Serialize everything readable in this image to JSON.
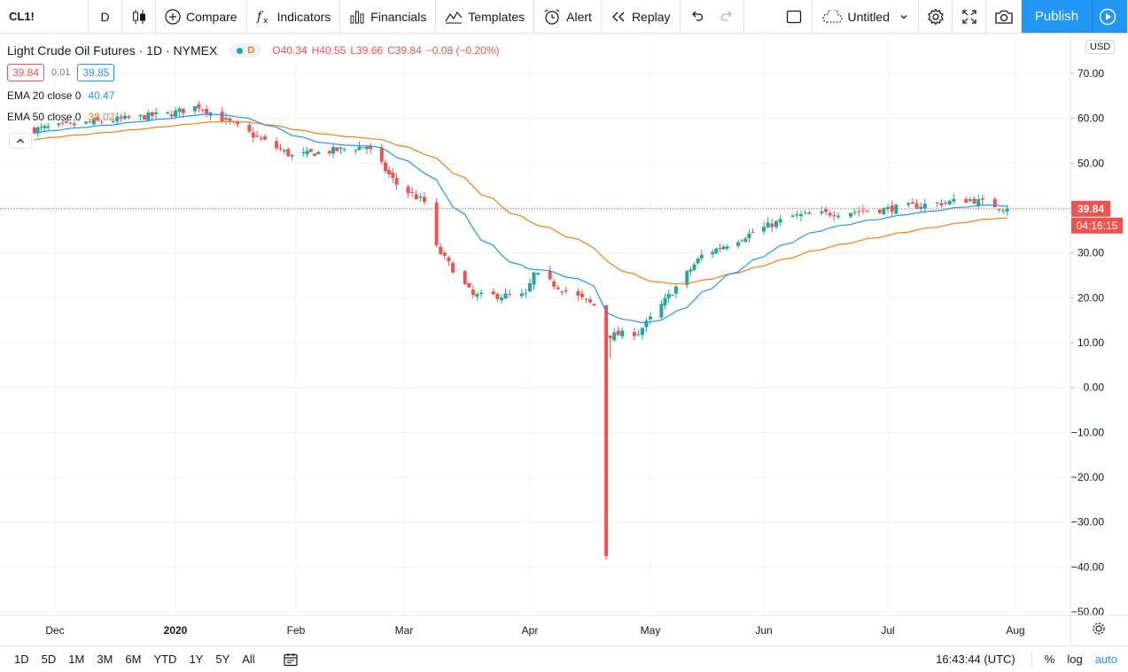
{
  "toolbar": {
    "symbol": "CL1!",
    "interval": "D",
    "compare": "Compare",
    "indicators": "Indicators",
    "financials": "Financials",
    "templates": "Templates",
    "alert": "Alert",
    "replay": "Replay",
    "layout_name": "Untitled",
    "publish": "Publish"
  },
  "legend": {
    "title": "Light Crude Oil Futures · 1D · NYMEX",
    "badge": "D",
    "open": "O40.34",
    "high": "H40.55",
    "low": "L39.66",
    "close": "C39.84",
    "change": "−0.08 (−0.20%)",
    "sell_price": "39.84",
    "spread": "0.01",
    "buy_price": "39.85",
    "ema20_label": "EMA 20 close 0",
    "ema20_value": "40.47",
    "ema50_label": "EMA 50 close 0",
    "ema50_value": "38.02"
  },
  "axis": {
    "currency": "USD",
    "price_ticks": [
      "70.00",
      "60.00",
      "50.00",
      "40.00",
      "30.00",
      "20.00",
      "10.00",
      "0.00",
      "−10.00",
      "−20.00",
      "−30.00",
      "−40.00",
      "−50.00"
    ],
    "time_ticks": [
      "Dec",
      "2020",
      "Feb",
      "Mar",
      "Apr",
      "May",
      "Jun",
      "Jul",
      "Aug"
    ],
    "last_price": "39.84",
    "countdown": "04:16:15"
  },
  "colors": {
    "up": "#26a69a",
    "down": "#ef5350",
    "ema20": "#2196f3",
    "ema50": "#f57f17",
    "accent": "#2196f3"
  },
  "bottombar": {
    "ranges": [
      "1D",
      "5D",
      "1M",
      "3M",
      "6M",
      "YTD",
      "1Y",
      "5Y",
      "All"
    ],
    "time": "16:43:44 (UTC)",
    "percent": "%",
    "log": "log",
    "auto": "auto"
  },
  "chart_data": {
    "type": "candlestick",
    "symbol": "CL1!",
    "ylim": [
      -50,
      70
    ],
    "price_scale_ticks": [
      70,
      60,
      50,
      40,
      30,
      20,
      10,
      0,
      -10,
      -20,
      -30,
      -40,
      -50
    ],
    "grid": true,
    "last_price": 39.84,
    "key_points": [
      {
        "date": "2019-11-25",
        "close": 57.5
      },
      {
        "date": "2019-12-31",
        "close": 61.1
      },
      {
        "date": "2020-01-07",
        "close": 62.7
      },
      {
        "date": "2020-01-31",
        "close": 51.6
      },
      {
        "date": "2020-02-20",
        "close": 53.8
      },
      {
        "date": "2020-02-28",
        "close": 45.3
      },
      {
        "date": "2020-03-06",
        "close": 41.3
      },
      {
        "date": "2020-03-09",
        "close": 31.1
      },
      {
        "date": "2020-03-18",
        "close": 20.4
      },
      {
        "date": "2020-03-31",
        "close": 20.5
      },
      {
        "date": "2020-04-02",
        "close": 25.3
      },
      {
        "date": "2020-04-17",
        "close": 18.3
      },
      {
        "date": "2020-04-20",
        "close": -37.6
      },
      {
        "date": "2020-04-21",
        "close": 11.6
      },
      {
        "date": "2020-04-28",
        "close": 12.3
      },
      {
        "date": "2020-05-15",
        "close": 29.4
      },
      {
        "date": "2020-06-08",
        "close": 38.2
      },
      {
        "date": "2020-07-01",
        "close": 39.8
      },
      {
        "date": "2020-07-21",
        "close": 41.9
      },
      {
        "date": "2020-07-30",
        "close": 39.84
      }
    ],
    "series": [
      {
        "name": "EMA 20 close 0",
        "last": 40.47
      },
      {
        "name": "EMA 50 close 0",
        "last": 38.02
      }
    ]
  }
}
